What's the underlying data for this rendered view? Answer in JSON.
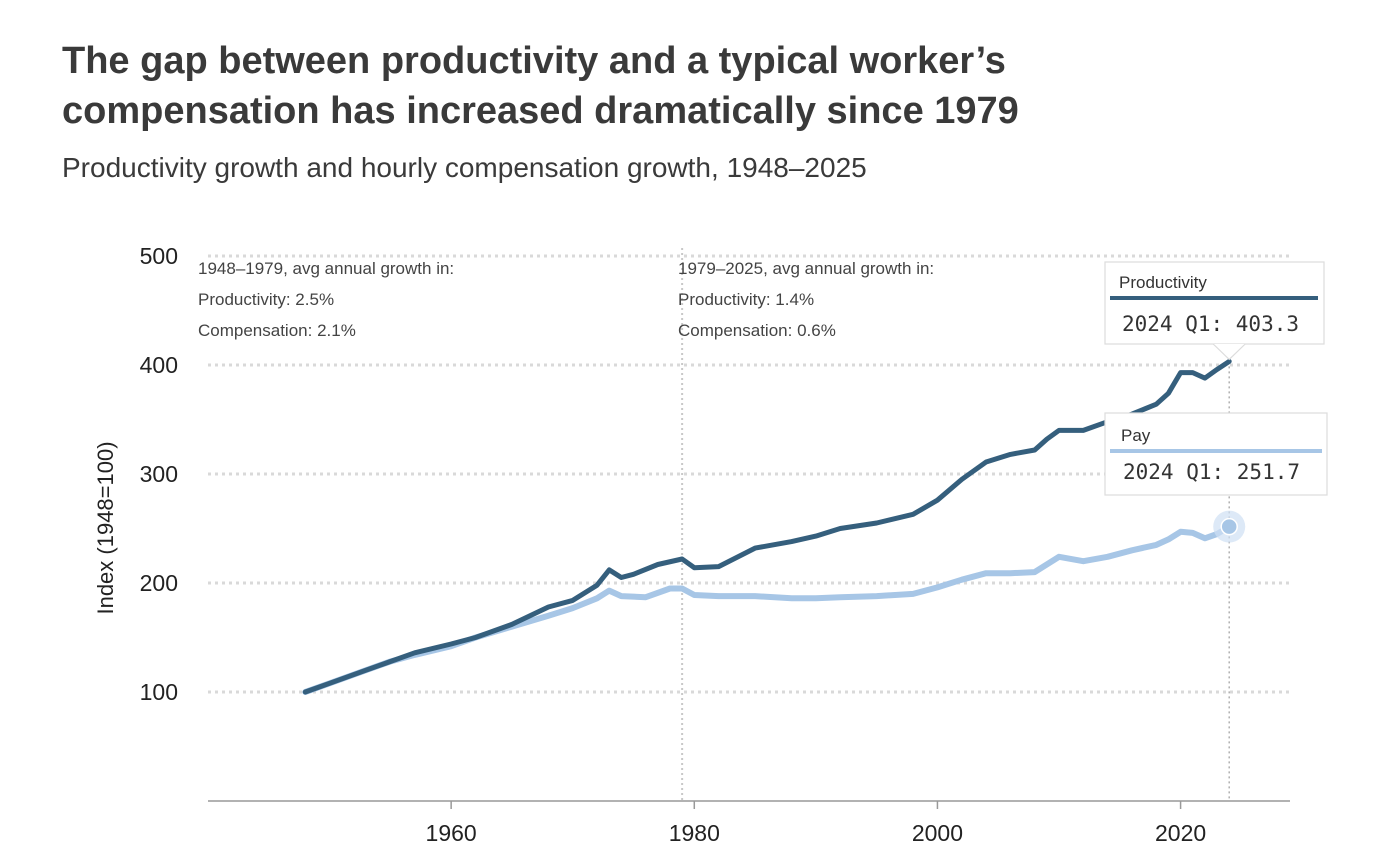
{
  "title": "The gap between productivity and a typical worker’s compensation has increased dramatically since 1979",
  "subtitle": "Productivity growth and hourly compensation growth, 1948–2025",
  "colors": {
    "productivity": "#355f7d",
    "pay": "#a7c6e6",
    "grid": "#d9d9d9",
    "axis": "#999999"
  },
  "annotations": {
    "left": [
      "1948–1979, avg annual growth in:",
      "Productivity: 2.5%",
      "Compensation: 2.1%"
    ],
    "right": [
      "1979–2025, avg annual growth in:",
      "Productivity: 1.4%",
      "Compensation: 0.6%"
    ]
  },
  "tooltips": {
    "productivity": {
      "name": "Productivity",
      "value": "2024 Q1: 403.3"
    },
    "pay": {
      "name": "Pay",
      "value": "2024 Q1: 251.7"
    }
  },
  "chart_data": {
    "type": "line",
    "ylabel": "Index (1948=100)",
    "xlabel": "",
    "xlim": [
      1940,
      2029
    ],
    "ylim": [
      0,
      500
    ],
    "yticks": [
      100,
      200,
      300,
      400,
      500
    ],
    "xticks": [
      1960,
      1980,
      2000,
      2020
    ],
    "grid": true,
    "reference_lines_x": [
      1979,
      2024
    ],
    "series": [
      {
        "name": "Productivity",
        "x": [
          1948,
          1950,
          1953,
          1955,
          1957,
          1960,
          1962,
          1965,
          1968,
          1970,
          1972,
          1973,
          1974,
          1975,
          1977,
          1979,
          1980,
          1982,
          1985,
          1988,
          1990,
          1992,
          1995,
          1998,
          2000,
          2002,
          2004,
          2006,
          2008,
          2009,
          2010,
          2012,
          2014,
          2016,
          2018,
          2019,
          2020,
          2021,
          2022,
          2023,
          2024
        ],
        "y": [
          100,
          108,
          120,
          128,
          136,
          144,
          150,
          162,
          178,
          184,
          198,
          212,
          205,
          208,
          217,
          222,
          214,
          215,
          232,
          238,
          243,
          250,
          255,
          263,
          276,
          295,
          311,
          318,
          322,
          332,
          340,
          340,
          348,
          355,
          364,
          374,
          393,
          393,
          388,
          396,
          403.3
        ]
      },
      {
        "name": "Pay",
        "x": [
          1948,
          1950,
          1953,
          1955,
          1957,
          1960,
          1962,
          1965,
          1968,
          1970,
          1972,
          1973,
          1974,
          1976,
          1978,
          1979,
          1980,
          1982,
          1985,
          1988,
          1990,
          1992,
          1995,
          1998,
          2000,
          2002,
          2004,
          2006,
          2008,
          2010,
          2012,
          2014,
          2016,
          2018,
          2019,
          2020,
          2021,
          2022,
          2023,
          2024
        ],
        "y": [
          100,
          108,
          120,
          128,
          134,
          142,
          150,
          160,
          170,
          177,
          186,
          193,
          188,
          187,
          195,
          195,
          189,
          188,
          188,
          186,
          186,
          187,
          188,
          190,
          196,
          203,
          209,
          209,
          210,
          224,
          220,
          224,
          230,
          235,
          240,
          247,
          246,
          241,
          245,
          251.7
        ]
      }
    ]
  }
}
